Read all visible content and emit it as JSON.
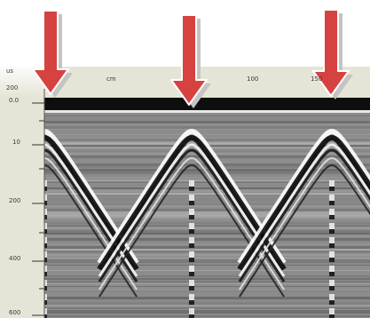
{
  "figure": {
    "top_axis_labels": [
      "us",
      "cm",
      "100",
      "150",
      "200"
    ],
    "left_axis_labels": [
      "0.0",
      "10",
      "200",
      "400",
      "600"
    ],
    "arrow_count": 3,
    "colors": {
      "arrow_fill": "#d6423f",
      "arrow_shadow": "#c4c4c4",
      "arrow_outline": "#ffffff",
      "frame": "#e6e4d6",
      "radargram_base": "#8c8c8c"
    }
  }
}
